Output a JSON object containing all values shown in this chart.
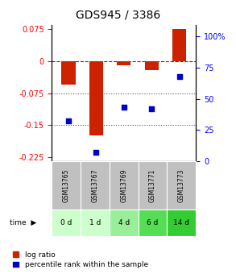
{
  "title": "GDS945 / 3386",
  "samples": [
    "GSM13765",
    "GSM13767",
    "GSM13769",
    "GSM13771",
    "GSM13773"
  ],
  "time_labels": [
    "0 d",
    "1 d",
    "4 d",
    "6 d",
    "14 d"
  ],
  "log_ratio": [
    -0.055,
    -0.175,
    -0.01,
    -0.02,
    0.075
  ],
  "percentile_rank": [
    32,
    7,
    43,
    42,
    68
  ],
  "left_yticks": [
    0.075,
    0,
    -0.075,
    -0.15,
    -0.225
  ],
  "left_yticklabels": [
    "0.075",
    "0",
    "-0.075",
    "-0.15",
    "-0.225"
  ],
  "right_yticks": [
    100,
    75,
    50,
    25,
    0
  ],
  "right_yticklabels": [
    "100%",
    "75",
    "50",
    "25",
    "0"
  ],
  "ylim_left": [
    -0.235,
    0.085
  ],
  "ylim_right": [
    0,
    109
  ],
  "bar_color": "#cc2200",
  "scatter_color": "#0000cc",
  "hline_color": "#cc0000",
  "dotted_line_color": "#555555",
  "bg_color": "#ffffff",
  "gsm_bg_color": "#c0c0c0",
  "time_row_colors": [
    "#ccffcc",
    "#ccffcc",
    "#99ee99",
    "#55dd55",
    "#33cc33"
  ],
  "title_fontsize": 10,
  "tick_fontsize": 7,
  "legend_fontsize": 6.5
}
